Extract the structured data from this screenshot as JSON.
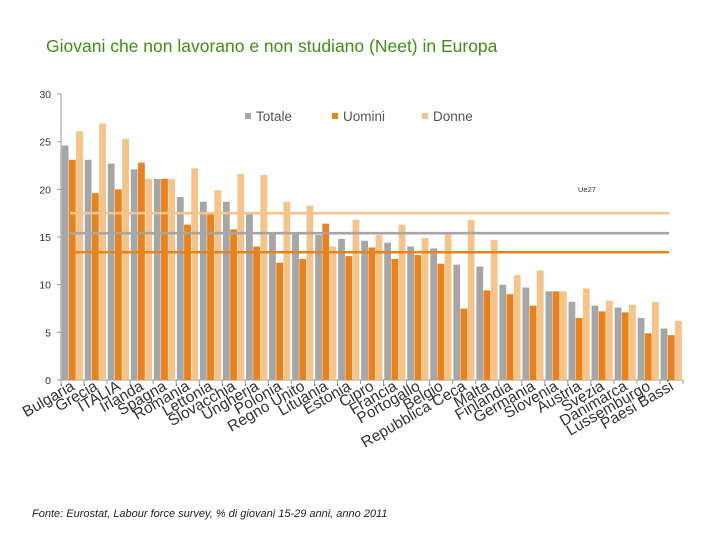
{
  "title": "Giovani che non lavorano e non studiano (Neet) in Europa",
  "source": "Fonte: Eurostat, Labour force survey, % di giovani 15-29 anni, anno 2011",
  "colors": {
    "totale": "#a6a6a6",
    "uomini": "#e8821e",
    "donne": "#f4c48a",
    "axis": "#999999"
  },
  "chart_data": {
    "type": "bar",
    "title": "Giovani che non lavorano e non studiano (Neet) in Europa",
    "ylim": [
      0,
      30
    ],
    "yticks": [
      0,
      5,
      10,
      15,
      20,
      25,
      30
    ],
    "categories": [
      "Bulgaria",
      "Grecia",
      "ITALIA",
      "Irlanda",
      "Spagna",
      "Romania",
      "Lettonia",
      "Slovacchia",
      "Ungheria",
      "Polonia",
      "Regno Unito",
      "Lituania",
      "Estonia",
      "Cipro",
      "Francia",
      "Portogallo",
      "Belgio",
      "Repubblica Ceca",
      "Malta",
      "Finlandia",
      "Germania",
      "Slovenia",
      "Austria",
      "Svezia",
      "Danimarca",
      "Lussemburgo",
      "Paesi Bassi"
    ],
    "series": [
      {
        "name": "Totale",
        "values": [
          24.6,
          23.1,
          22.7,
          22.1,
          21.1,
          19.2,
          18.7,
          18.7,
          17.4,
          15.5,
          15.5,
          15.2,
          14.8,
          14.6,
          14.4,
          14.0,
          13.8,
          12.1,
          11.9,
          10.0,
          9.7,
          9.3,
          8.2,
          7.8,
          7.6,
          6.5,
          5.4
        ]
      },
      {
        "name": "Uomini",
        "values": [
          23.1,
          19.6,
          20.0,
          22.8,
          21.1,
          16.3,
          17.6,
          15.8,
          14.0,
          12.3,
          12.7,
          16.4,
          13.0,
          13.9,
          12.7,
          13.1,
          12.2,
          7.5,
          9.4,
          9.0,
          7.8,
          9.3,
          6.5,
          7.2,
          7.1,
          4.9,
          4.7
        ]
      },
      {
        "name": "Donne",
        "values": [
          26.1,
          26.9,
          25.3,
          21.1,
          21.1,
          22.2,
          19.9,
          21.6,
          21.5,
          18.7,
          18.3,
          14.0,
          16.8,
          15.2,
          16.3,
          14.9,
          15.3,
          16.8,
          14.7,
          11.0,
          11.5,
          9.3,
          9.6,
          8.3,
          7.9,
          8.2,
          6.2
        ]
      }
    ],
    "reference_lines": [
      {
        "label": "Ue27",
        "series": "Donne",
        "value": 17.5
      },
      {
        "label": "Ue27",
        "series": "Totale",
        "value": 15.4
      },
      {
        "label": "Ue27",
        "series": "Uomini",
        "value": 13.4
      }
    ],
    "legend": [
      "Totale",
      "Uomini",
      "Donne"
    ],
    "legend_position": "top-center",
    "grid": false
  }
}
